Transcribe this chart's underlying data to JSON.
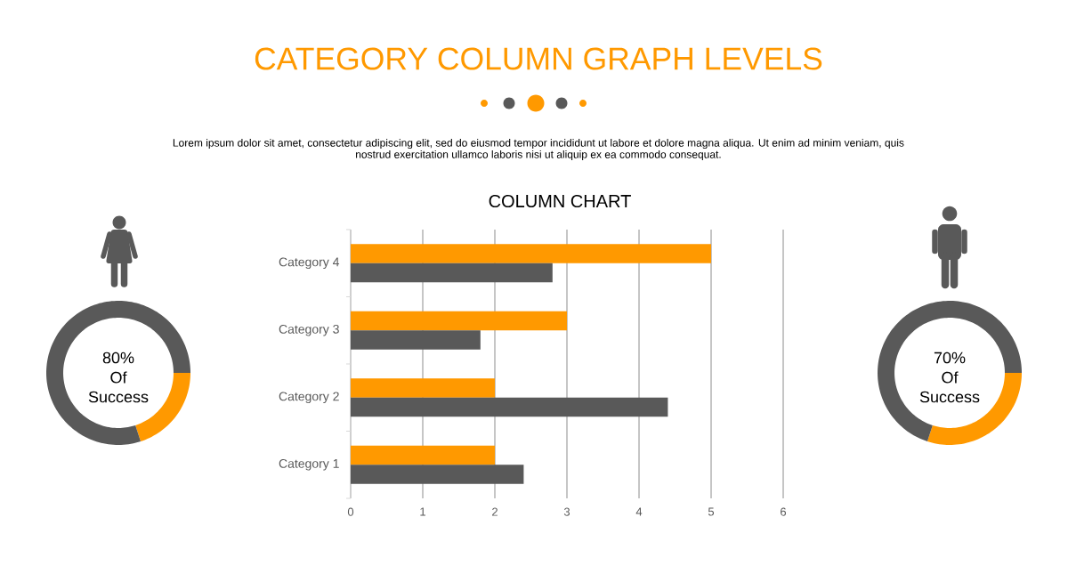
{
  "chart_data": [
    {
      "type": "other",
      "title": "CATEGORY COLUMN GRAPH LEVELS",
      "subtitle": "Lorem ipsum dolor sit amet, consectetur adipiscing elit, sed do eiusmod tempor incididunt ut labore et dolore magna aliqua. Ut enim ad minim veniam, quis nostrud exercitation ullamco laboris nisi ut aliquip ex ea commodo consequat."
    },
    {
      "type": "donut",
      "categories": [
        null,
        null
      ],
      "values": [
        20,
        80
      ],
      "colors": [
        "#ff9900",
        "#595959"
      ],
      "annotations": [
        "80%",
        "Of",
        "Success"
      ]
    },
    {
      "type": "bar",
      "orientation": "horizontal",
      "title": "COLUMN CHART",
      "categories": [
        "Category 4",
        "Category 3",
        "Category 2",
        "Category 1"
      ],
      "series": [
        {
          "color": "#ff9900",
          "values": [
            5,
            3,
            2,
            2
          ]
        },
        {
          "color": "#595959",
          "values": [
            2.8,
            1.8,
            4.4,
            2.4
          ]
        }
      ],
      "xlim": [
        0,
        6
      ],
      "xticks": [
        0,
        1,
        2,
        3,
        4,
        5,
        6
      ],
      "grid": "x"
    },
    {
      "type": "donut",
      "categories": [
        null,
        null
      ],
      "values": [
        30,
        70
      ],
      "colors": [
        "#ff9900",
        "#595959"
      ],
      "annotations": [
        "70%",
        "Of",
        "Success"
      ]
    }
  ]
}
